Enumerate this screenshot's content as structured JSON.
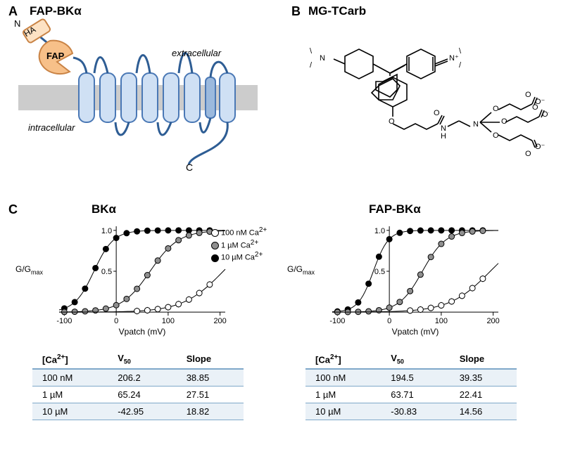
{
  "panelA": {
    "label": "A",
    "title": "FAP-BKα",
    "n_label": "N",
    "ha_label": "HA",
    "fap_label": "FAP",
    "c_label": "C",
    "extracellular": "extracellular",
    "intracellular": "intracellular",
    "colors": {
      "fap_fill": "#f7c089",
      "fap_stroke": "#c98345",
      "ha_fill": "#fde2c4",
      "ha_stroke": "#c98345",
      "membrane": "#cccccc",
      "helix_fill": "#cfe0f4",
      "helix_stroke": "#4a78b5",
      "loop": "#2e5d94"
    }
  },
  "panelB": {
    "label": "B",
    "title": "MG-TCarb"
  },
  "panelC": {
    "label": "C",
    "chart_left_title": "BKα",
    "chart_right_title": "FAP-BKα",
    "y_label": "G/G",
    "y_sub": "max",
    "x_label": "Vpatch (mV)",
    "legend": [
      {
        "label": "100 nM Ca",
        "fill": "#ffffff"
      },
      {
        "label": "1 µM Ca",
        "fill": "#8f8f8f"
      },
      {
        "label": "10 µM Ca",
        "fill": "#000000"
      }
    ],
    "legend_sup": "2+",
    "x_ticks": [
      "-100",
      "0",
      "100",
      "200"
    ],
    "y_ticks": [
      "0.5",
      "1.0"
    ],
    "series": {
      "left": {
        "s100nM": {
          "v50": 206.2,
          "slope": 38.85,
          "fill": "#ffffff"
        },
        "s1uM": {
          "v50": 65.24,
          "slope": 27.51,
          "fill": "#8f8f8f"
        },
        "s10uM": {
          "v50": -42.95,
          "slope": 18.82,
          "fill": "#000000"
        }
      },
      "right": {
        "s100nM": {
          "v50": 194.5,
          "slope": 39.35,
          "fill": "#ffffff"
        },
        "s1uM": {
          "v50": 63.71,
          "slope": 22.41,
          "fill": "#8f8f8f"
        },
        "s10uM": {
          "v50": -30.83,
          "slope": 14.56,
          "fill": "#000000"
        }
      }
    },
    "sample_x": [
      -100,
      -80,
      -60,
      -40,
      -20,
      0,
      20,
      40,
      60,
      80,
      100,
      120,
      140,
      160,
      180
    ],
    "table_headers": [
      "[Ca2+]",
      "V50",
      "Slope"
    ],
    "table_left": [
      {
        "c": "100 nM",
        "v": "206.2",
        "s": "38.85",
        "band": true
      },
      {
        "c": "1 µM",
        "v": "65.24",
        "s": "27.51",
        "band": false
      },
      {
        "c": "10 µM",
        "v": "-42.95",
        "s": "18.82",
        "band": true
      }
    ],
    "table_right": [
      {
        "c": "100 nM",
        "v": "194.5",
        "s": "39.35",
        "band": true
      },
      {
        "c": "1 µM",
        "v": "63.71",
        "s": "22.41",
        "band": false
      },
      {
        "c": "10 µM",
        "v": "-30.83",
        "s": "14.56",
        "band": true
      }
    ]
  }
}
